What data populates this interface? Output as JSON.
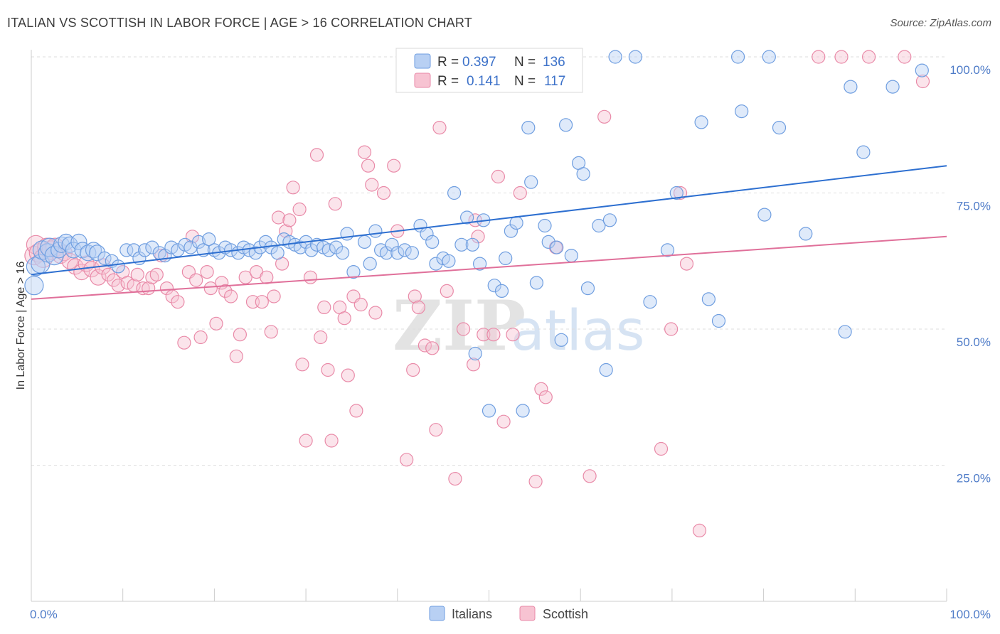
{
  "title": "ITALIAN VS SCOTTISH IN LABOR FORCE | AGE > 16 CORRELATION CHART",
  "source": "Source: ZipAtlas.com",
  "watermark": {
    "zip": "ZIP",
    "atlas": "atlas"
  },
  "stats": [
    {
      "r_label": "R =",
      "r_value": "0.397",
      "n_label": "N =",
      "n_value": "136",
      "fill": "#b8d0f3",
      "stroke": "#6f9ee0"
    },
    {
      "r_label": "R =",
      "r_value": "0.141",
      "n_label": "N =",
      "n_value": "117",
      "fill": "#f7c3d2",
      "stroke": "#e98aa8"
    }
  ],
  "chart_data": {
    "type": "scatter",
    "title": "ITALIAN VS SCOTTISH IN LABOR FORCE | AGE > 16 CORRELATION CHART",
    "xlabel": "",
    "ylabel": "In Labor Force | Age > 16",
    "xlim": [
      0,
      100
    ],
    "ylim": [
      0,
      100
    ],
    "x_tick_labels": [
      "0.0%",
      "100.0%"
    ],
    "y_tick_labels": [
      "25.0%",
      "50.0%",
      "75.0%",
      "100.0%"
    ],
    "y_ticks": [
      25,
      50,
      75,
      100
    ],
    "grid": true,
    "legend_position": "bottom",
    "colors": {
      "italians": "#6f9ee0",
      "scottish": "#e98aa8",
      "italians_line": "#2d6fd0",
      "scottish_line": "#e0709a"
    },
    "series": [
      {
        "name": "Italians",
        "trend": [
          [
            0,
            60
          ],
          [
            100,
            80
          ]
        ],
        "points": [
          [
            0.3,
            58
          ],
          [
            0.5,
            61.5
          ],
          [
            1,
            62
          ],
          [
            1.2,
            64.5
          ],
          [
            1.8,
            64
          ],
          [
            2,
            65
          ],
          [
            2.5,
            63.5
          ],
          [
            3,
            64.5
          ],
          [
            3.3,
            65.5
          ],
          [
            3.8,
            66
          ],
          [
            4.2,
            65.5
          ],
          [
            4.6,
            64.5
          ],
          [
            5.2,
            66
          ],
          [
            5.6,
            64.5
          ],
          [
            6.2,
            64
          ],
          [
            6.8,
            64.5
          ],
          [
            7.2,
            64
          ],
          [
            8,
            63
          ],
          [
            8.8,
            62.5
          ],
          [
            9.5,
            61.5
          ],
          [
            10.4,
            64.5
          ],
          [
            11.2,
            64.5
          ],
          [
            11.8,
            63
          ],
          [
            12.4,
            64.5
          ],
          [
            13.2,
            65
          ],
          [
            14,
            64
          ],
          [
            14.6,
            63.5
          ],
          [
            15.3,
            65
          ],
          [
            16,
            64.5
          ],
          [
            16.8,
            65.5
          ],
          [
            17.4,
            65
          ],
          [
            18.3,
            66
          ],
          [
            18.8,
            64.5
          ],
          [
            19.4,
            66.5
          ],
          [
            20,
            64.5
          ],
          [
            20.5,
            64
          ],
          [
            21.2,
            65
          ],
          [
            21.8,
            64.5
          ],
          [
            22.6,
            64
          ],
          [
            23.2,
            65
          ],
          [
            23.8,
            64.5
          ],
          [
            24.5,
            64
          ],
          [
            25,
            65
          ],
          [
            25.6,
            66
          ],
          [
            26.2,
            65
          ],
          [
            26.9,
            64
          ],
          [
            27.6,
            66.5
          ],
          [
            28.2,
            66
          ],
          [
            28.8,
            65.5
          ],
          [
            29.4,
            65
          ],
          [
            30,
            66
          ],
          [
            30.6,
            64.5
          ],
          [
            31.2,
            65.5
          ],
          [
            31.9,
            65
          ],
          [
            32.5,
            64.5
          ],
          [
            33.3,
            65
          ],
          [
            34,
            64
          ],
          [
            34.5,
            67.5
          ],
          [
            35.2,
            60.5
          ],
          [
            36.4,
            66
          ],
          [
            37,
            62
          ],
          [
            37.6,
            68
          ],
          [
            38.2,
            64.5
          ],
          [
            38.8,
            64
          ],
          [
            39.4,
            65.5
          ],
          [
            40,
            64
          ],
          [
            40.8,
            64.5
          ],
          [
            41.6,
            64
          ],
          [
            42.5,
            69
          ],
          [
            43.2,
            67.5
          ],
          [
            43.8,
            66
          ],
          [
            44.2,
            62
          ],
          [
            45,
            63
          ],
          [
            45.6,
            62.5
          ],
          [
            46.2,
            75
          ],
          [
            47,
            65.5
          ],
          [
            47.6,
            70.5
          ],
          [
            48.2,
            65.5
          ],
          [
            49,
            62
          ],
          [
            48.5,
            45.5
          ],
          [
            49.4,
            70
          ],
          [
            50,
            35
          ],
          [
            50.6,
            58
          ],
          [
            51.4,
            57
          ],
          [
            51.8,
            63
          ],
          [
            52.4,
            68
          ],
          [
            53,
            69.5
          ],
          [
            53.7,
            35
          ],
          [
            54.3,
            87
          ],
          [
            54.6,
            77
          ],
          [
            55.2,
            58.5
          ],
          [
            56.1,
            69
          ],
          [
            56.5,
            66
          ],
          [
            57.4,
            65
          ],
          [
            57.9,
            48
          ],
          [
            58.4,
            87.5
          ],
          [
            59,
            63.5
          ],
          [
            59.8,
            80.5
          ],
          [
            60.3,
            78.5
          ],
          [
            60.8,
            57.5
          ],
          [
            62,
            69
          ],
          [
            62.8,
            42.5
          ],
          [
            63.2,
            70
          ],
          [
            63.8,
            100
          ],
          [
            66,
            100
          ],
          [
            67.6,
            55
          ],
          [
            69.5,
            64.5
          ],
          [
            70.5,
            75
          ],
          [
            73.2,
            88
          ],
          [
            74,
            55.5
          ],
          [
            75.1,
            51.5
          ],
          [
            77.2,
            100
          ],
          [
            77.6,
            90
          ],
          [
            80.1,
            71
          ],
          [
            80.6,
            100
          ],
          [
            81.7,
            87
          ],
          [
            84.6,
            67.5
          ],
          [
            88.9,
            49.5
          ],
          [
            89.5,
            94.5
          ],
          [
            90.9,
            82.5
          ],
          [
            94.1,
            94.5
          ],
          [
            97.3,
            97.5
          ]
        ]
      },
      {
        "name": "Scottish",
        "trend": [
          [
            0,
            55.5
          ],
          [
            100,
            67
          ]
        ],
        "points": [
          [
            0.3,
            63.5
          ],
          [
            0.5,
            65.5
          ],
          [
            0.8,
            64
          ],
          [
            1.3,
            63
          ],
          [
            1.7,
            65
          ],
          [
            2.2,
            64.5
          ],
          [
            2.6,
            65
          ],
          [
            3.2,
            63.5
          ],
          [
            3.6,
            64
          ],
          [
            4.2,
            62.5
          ],
          [
            4.8,
            61.5
          ],
          [
            5.5,
            60.5
          ],
          [
            6,
            62
          ],
          [
            6.6,
            61
          ],
          [
            7.3,
            59.5
          ],
          [
            7.8,
            61.5
          ],
          [
            8.4,
            60
          ],
          [
            9,
            59
          ],
          [
            9.5,
            58
          ],
          [
            10,
            60.5
          ],
          [
            10.5,
            58.5
          ],
          [
            11.2,
            58
          ],
          [
            11.6,
            60
          ],
          [
            12.2,
            57.5
          ],
          [
            12.8,
            57.5
          ],
          [
            13.2,
            59.5
          ],
          [
            13.7,
            60
          ],
          [
            14.2,
            63.5
          ],
          [
            14.8,
            57.5
          ],
          [
            15.4,
            56
          ],
          [
            16,
            55
          ],
          [
            16.7,
            47.5
          ],
          [
            17.2,
            60.5
          ],
          [
            17.6,
            67
          ],
          [
            18,
            59
          ],
          [
            18.5,
            48.5
          ],
          [
            19.2,
            60.5
          ],
          [
            19.6,
            57.5
          ],
          [
            20.2,
            51
          ],
          [
            20.8,
            58.5
          ],
          [
            21.2,
            57
          ],
          [
            21.8,
            56
          ],
          [
            22.4,
            45
          ],
          [
            22.8,
            49
          ],
          [
            23.4,
            59.5
          ],
          [
            24.2,
            55
          ],
          [
            24.6,
            60.5
          ],
          [
            25.2,
            55
          ],
          [
            25.7,
            59.5
          ],
          [
            26.2,
            49.5
          ],
          [
            26.5,
            56
          ],
          [
            27,
            70.5
          ],
          [
            27.4,
            62
          ],
          [
            27.8,
            68
          ],
          [
            28.2,
            70
          ],
          [
            28.6,
            76
          ],
          [
            29.3,
            72
          ],
          [
            29.6,
            43.5
          ],
          [
            30,
            29.5
          ],
          [
            30.5,
            59.5
          ],
          [
            31.2,
            82
          ],
          [
            31.6,
            48.5
          ],
          [
            32,
            54
          ],
          [
            32.4,
            42.5
          ],
          [
            32.8,
            29.5
          ],
          [
            33.2,
            73
          ],
          [
            33.7,
            54
          ],
          [
            34.2,
            52
          ],
          [
            34.6,
            41.5
          ],
          [
            35.2,
            56
          ],
          [
            35.5,
            35
          ],
          [
            36,
            54.5
          ],
          [
            36.4,
            82.5
          ],
          [
            36.8,
            80
          ],
          [
            37.2,
            76.5
          ],
          [
            37.6,
            53
          ],
          [
            38.5,
            75
          ],
          [
            39.6,
            80
          ],
          [
            40,
            68
          ],
          [
            41,
            26
          ],
          [
            41.7,
            42.5
          ],
          [
            41.9,
            56
          ],
          [
            42.3,
            54
          ],
          [
            43,
            47
          ],
          [
            43.8,
            46.5
          ],
          [
            44.2,
            31.5
          ],
          [
            44.6,
            87
          ],
          [
            45.4,
            57
          ],
          [
            46.3,
            22.5
          ],
          [
            47.2,
            50
          ],
          [
            48.3,
            43.5
          ],
          [
            48.5,
            70
          ],
          [
            48.8,
            67
          ],
          [
            49.4,
            49
          ],
          [
            50.5,
            49
          ],
          [
            51,
            78
          ],
          [
            51.6,
            33
          ],
          [
            52.6,
            49
          ],
          [
            53.4,
            75
          ],
          [
            55.1,
            22
          ],
          [
            55.7,
            39
          ],
          [
            56.2,
            37.5
          ],
          [
            57.3,
            65
          ],
          [
            61,
            23
          ],
          [
            62.6,
            89
          ],
          [
            68.8,
            28
          ],
          [
            69.9,
            50
          ],
          [
            70.9,
            75
          ],
          [
            71.6,
            62
          ],
          [
            73,
            13
          ],
          [
            86,
            100
          ],
          [
            88.5,
            100
          ],
          [
            91.5,
            100
          ],
          [
            95.4,
            100
          ],
          [
            97.4,
            95.5
          ]
        ]
      }
    ]
  },
  "legend": [
    {
      "label": "Italians",
      "fill": "#b8d0f3",
      "stroke": "#6f9ee0"
    },
    {
      "label": "Scottish",
      "fill": "#f7c3d2",
      "stroke": "#e98aa8"
    }
  ]
}
